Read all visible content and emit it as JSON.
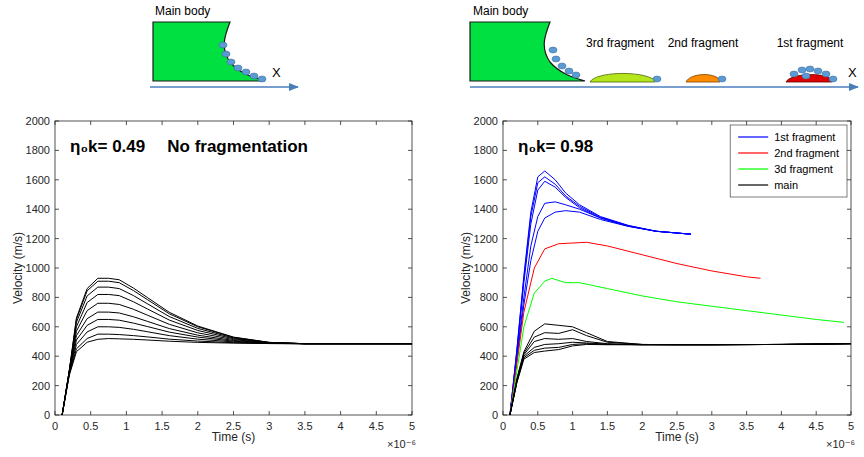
{
  "chart_data": [
    {
      "type": "line",
      "title": "η₀k= 0.49",
      "subtitle": "No fragmentation",
      "annotations": [
        "×10⁻⁶"
      ],
      "schematic_labels": [
        "Main body",
        "X"
      ],
      "xlabel": "Time (s)",
      "ylabel": "Velocity (m/s)",
      "xlim": [
        0,
        5
      ],
      "ylim": [
        0,
        2000
      ],
      "xticks": [
        0,
        0.5,
        1,
        1.5,
        2,
        2.5,
        3,
        3.5,
        4,
        4.5,
        5
      ],
      "yticks": [
        0,
        200,
        400,
        600,
        800,
        1000,
        1200,
        1400,
        1600,
        1800,
        2000
      ],
      "series": [
        {
          "color": "#000000",
          "x": [
            0.1,
            0.2,
            0.3,
            0.45,
            0.6,
            0.75,
            0.9,
            1.1,
            1.3,
            1.6,
            2.0,
            2.5,
            3.0,
            3.5,
            4.0,
            5.0
          ],
          "values": [
            0,
            300,
            660,
            860,
            930,
            930,
            920,
            863,
            797,
            699,
            605,
            530,
            494,
            485,
            485,
            485
          ]
        },
        {
          "color": "#000000",
          "x": [
            0.1,
            0.2,
            0.3,
            0.45,
            0.6,
            0.75,
            0.9,
            1.1,
            1.3,
            1.6,
            2.0,
            2.5,
            3.0,
            3.5,
            4.0,
            5.0
          ],
          "values": [
            0,
            300,
            650,
            845,
            910,
            910,
            900,
            846,
            783,
            689,
            600,
            528,
            494,
            485,
            485,
            485
          ]
        },
        {
          "color": "#000000",
          "x": [
            0.1,
            0.2,
            0.3,
            0.45,
            0.6,
            0.75,
            0.9,
            1.1,
            1.3,
            1.6,
            2.0,
            2.5,
            3.0,
            3.5,
            4.0,
            5.0
          ],
          "values": [
            0,
            300,
            630,
            810,
            870,
            870,
            860,
            812,
            755,
            670,
            589,
            524,
            493,
            485,
            485,
            485
          ]
        },
        {
          "color": "#000000",
          "x": [
            0.1,
            0.2,
            0.3,
            0.45,
            0.6,
            0.75,
            0.9,
            1.1,
            1.3,
            1.6,
            2.0,
            2.5,
            3.0,
            3.5,
            4.0,
            5.0
          ],
          "values": [
            0,
            300,
            600,
            765,
            820,
            820,
            812,
            770,
            720,
            646,
            575,
            519,
            492,
            485,
            485,
            485
          ]
        },
        {
          "color": "#000000",
          "x": [
            0.1,
            0.2,
            0.3,
            0.45,
            0.6,
            0.75,
            0.9,
            1.1,
            1.3,
            1.6,
            2.0,
            2.5,
            3.0,
            3.5,
            4.0,
            5.0
          ],
          "values": [
            0,
            295,
            570,
            710,
            760,
            760,
            752,
            719,
            678,
            617,
            559,
            513,
            491,
            485,
            485,
            485
          ]
        },
        {
          "color": "#000000",
          "x": [
            0.1,
            0.2,
            0.3,
            0.45,
            0.6,
            0.75,
            0.9,
            1.1,
            1.3,
            1.6,
            2.0,
            2.5,
            3.0,
            3.5,
            4.0,
            5.0
          ],
          "values": [
            0,
            290,
            540,
            655,
            700,
            700,
            694,
            668,
            636,
            588,
            543,
            507,
            489,
            485,
            485,
            485
          ]
        },
        {
          "color": "#000000",
          "x": [
            0.1,
            0.2,
            0.3,
            0.45,
            0.6,
            0.75,
            0.9,
            1.1,
            1.3,
            1.6,
            2.0,
            2.5,
            3.0,
            3.5,
            4.0,
            5.0
          ],
          "values": [
            0,
            285,
            510,
            610,
            650,
            650,
            645,
            625,
            601,
            564,
            530,
            502,
            488,
            485,
            485,
            485
          ]
        },
        {
          "color": "#000000",
          "x": [
            0.1,
            0.2,
            0.3,
            0.45,
            0.6,
            0.75,
            0.9,
            1.1,
            1.3,
            1.6,
            2.0,
            2.5,
            3.0,
            3.5,
            4.0,
            5.0
          ],
          "values": [
            0,
            280,
            480,
            565,
            600,
            600,
            596,
            583,
            566,
            540,
            516,
            497,
            487,
            485,
            485,
            485
          ]
        },
        {
          "color": "#000000",
          "x": [
            0.1,
            0.2,
            0.3,
            0.45,
            0.6,
            0.75,
            0.9,
            1.1,
            1.3,
            1.6,
            2.0,
            2.5,
            3.0,
            3.5,
            4.0,
            5.0
          ],
          "values": [
            0,
            275,
            450,
            520,
            550,
            550,
            547,
            540,
            531,
            516,
            503,
            492,
            486,
            485,
            485,
            485
          ]
        },
        {
          "color": "#000000",
          "x": [
            0.1,
            0.2,
            0.3,
            0.45,
            0.6,
            0.75,
            0.9,
            1.1,
            1.3,
            1.6,
            2.0,
            2.5,
            3.0,
            3.5,
            4.0,
            5.0
          ],
          "values": [
            0,
            270,
            430,
            495,
            515,
            520,
            518,
            515,
            510,
            502,
            494,
            489,
            486,
            485,
            485,
            485
          ]
        }
      ]
    },
    {
      "type": "line",
      "title": "η₀k= 0.98",
      "annotations": [
        "×10⁻⁶"
      ],
      "schematic_labels": [
        "Main body",
        "3rd fragment",
        "2nd fragment",
        "1st fragment",
        "X"
      ],
      "xlabel": "Time (s)",
      "ylabel": "Velocity (m/s)",
      "xlim": [
        0,
        5
      ],
      "ylim": [
        0,
        2000
      ],
      "xticks": [
        0,
        0.5,
        1,
        1.5,
        2,
        2.5,
        3,
        3.5,
        4,
        4.5,
        5
      ],
      "yticks": [
        0,
        200,
        400,
        600,
        800,
        1000,
        1200,
        1400,
        1600,
        1800,
        2000
      ],
      "legend": "upper right",
      "series": [
        {
          "name": "1st fragment",
          "color": "#0000ff",
          "x": [
            0.1,
            0.2,
            0.3,
            0.4,
            0.5,
            0.6,
            0.75,
            0.9,
            1.1,
            1.4,
            1.8,
            2.2,
            2.7
          ],
          "values": [
            0,
            450,
            950,
            1380,
            1620,
            1660,
            1600,
            1510,
            1430,
            1350,
            1290,
            1250,
            1230
          ]
        },
        {
          "name": "1st fragment",
          "color": "#0000ff",
          "x": [
            0.1,
            0.2,
            0.3,
            0.4,
            0.5,
            0.6,
            0.75,
            0.9,
            1.1,
            1.4,
            1.8,
            2.2,
            2.7
          ],
          "values": [
            0,
            440,
            930,
            1350,
            1580,
            1620,
            1570,
            1490,
            1420,
            1345,
            1288,
            1250,
            1230
          ]
        },
        {
          "name": "1st fragment",
          "color": "#0000ff",
          "x": [
            0.1,
            0.2,
            0.3,
            0.4,
            0.5,
            0.6,
            0.75,
            0.9,
            1.1,
            1.4,
            1.8,
            2.2,
            2.7
          ],
          "values": [
            0,
            430,
            900,
            1300,
            1530,
            1590,
            1550,
            1480,
            1410,
            1340,
            1285,
            1250,
            1230
          ]
        },
        {
          "name": "1st fragment",
          "color": "#0000ff",
          "x": [
            0.1,
            0.2,
            0.3,
            0.4,
            0.5,
            0.6,
            0.75,
            0.9,
            1.1,
            1.4,
            1.8,
            2.2,
            2.7
          ],
          "values": [
            0,
            400,
            800,
            1150,
            1350,
            1440,
            1450,
            1430,
            1400,
            1340,
            1285,
            1250,
            1230
          ]
        },
        {
          "name": "1st fragment",
          "color": "#0000ff",
          "x": [
            0.1,
            0.2,
            0.3,
            0.4,
            0.5,
            0.6,
            0.75,
            0.9,
            1.1,
            1.4,
            1.8,
            2.2,
            2.7
          ],
          "values": [
            0,
            380,
            750,
            1050,
            1250,
            1340,
            1380,
            1390,
            1380,
            1330,
            1283,
            1250,
            1230
          ]
        },
        {
          "name": "2nd fragment",
          "color": "#ff0000",
          "x": [
            0.1,
            0.2,
            0.3,
            0.45,
            0.6,
            0.8,
            1.0,
            1.2,
            1.5,
            2.0,
            2.5,
            3.0,
            3.5,
            3.7
          ],
          "values": [
            0,
            350,
            700,
            1000,
            1130,
            1165,
            1170,
            1175,
            1150,
            1090,
            1030,
            980,
            940,
            930
          ]
        },
        {
          "name": "3d fragment",
          "color": "#00ff00",
          "x": [
            0.1,
            0.2,
            0.3,
            0.45,
            0.6,
            0.7,
            0.9,
            1.1,
            1.5,
            2.0,
            2.5,
            3.0,
            3.5,
            4.0,
            4.5,
            4.9
          ],
          "values": [
            0,
            300,
            600,
            830,
            910,
            930,
            900,
            900,
            860,
            810,
            770,
            740,
            710,
            680,
            650,
            630
          ]
        },
        {
          "name": "main",
          "color": "#000000",
          "x": [
            0.1,
            0.2,
            0.3,
            0.45,
            0.6,
            0.8,
            1.0,
            1.2,
            1.5,
            2.0,
            2.5,
            3.0,
            4.0,
            5.0
          ],
          "values": [
            0,
            250,
            430,
            570,
            620,
            610,
            600,
            560,
            500,
            480,
            478,
            478,
            480,
            485
          ]
        },
        {
          "name": "main",
          "color": "#000000",
          "x": [
            0.1,
            0.2,
            0.3,
            0.45,
            0.6,
            0.8,
            1.0,
            1.2,
            1.5,
            2.0,
            2.5,
            3.0,
            4.0,
            5.0
          ],
          "values": [
            0,
            240,
            420,
            530,
            560,
            555,
            580,
            540,
            495,
            480,
            478,
            478,
            480,
            485
          ]
        },
        {
          "name": "main",
          "color": "#000000",
          "x": [
            0.1,
            0.2,
            0.3,
            0.45,
            0.6,
            0.8,
            1.0,
            1.2,
            1.5,
            2.0,
            2.5,
            3.0,
            4.0,
            5.0
          ],
          "values": [
            0,
            235,
            410,
            500,
            520,
            515,
            520,
            500,
            485,
            478,
            478,
            478,
            480,
            485
          ]
        },
        {
          "name": "main",
          "color": "#000000",
          "x": [
            0.1,
            0.2,
            0.3,
            0.45,
            0.6,
            0.8,
            1.0,
            1.2,
            1.5,
            2.0,
            2.5,
            3.0,
            4.0,
            5.0
          ],
          "values": [
            0,
            230,
            400,
            460,
            480,
            485,
            495,
            490,
            482,
            478,
            478,
            478,
            480,
            485
          ]
        },
        {
          "name": "main",
          "color": "#000000",
          "x": [
            0.1,
            0.2,
            0.3,
            0.45,
            0.6,
            0.8,
            1.0,
            1.2,
            1.5,
            2.0,
            2.5,
            3.0,
            4.0,
            5.0
          ],
          "values": [
            0,
            225,
            390,
            440,
            455,
            460,
            480,
            485,
            480,
            478,
            478,
            478,
            480,
            485
          ]
        },
        {
          "name": "main",
          "color": "#000000",
          "x": [
            0.1,
            0.2,
            0.3,
            0.45,
            0.6,
            0.8,
            1.0,
            1.2,
            1.5,
            2.0,
            2.5,
            3.0,
            4.0,
            5.0
          ],
          "values": [
            0,
            220,
            380,
            425,
            435,
            445,
            470,
            480,
            478,
            478,
            478,
            478,
            480,
            485
          ]
        }
      ]
    }
  ]
}
